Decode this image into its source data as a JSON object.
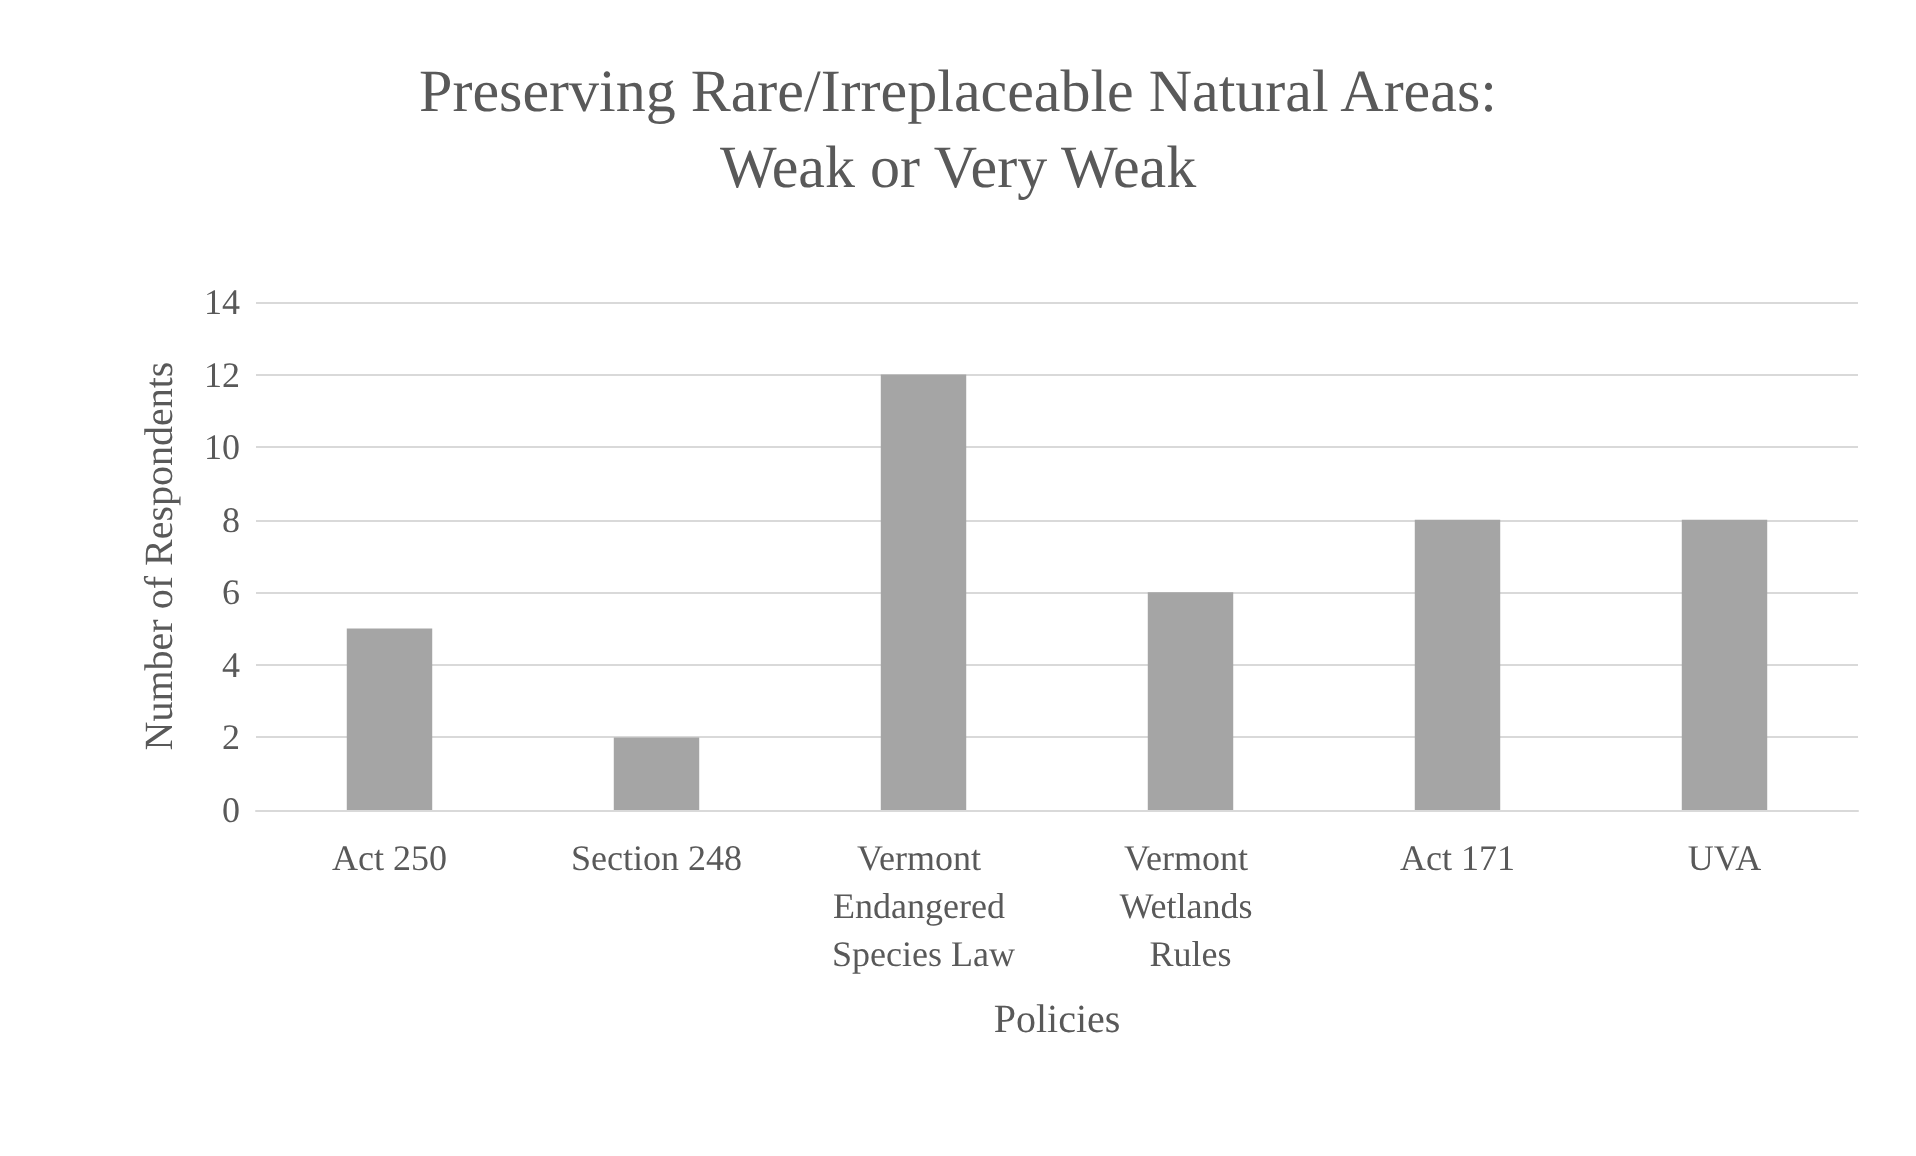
{
  "chart_data": {
    "type": "bar",
    "title": "Preserving Rare/Irreplaceable Natural Areas:\nWeak or Very Weak",
    "xlabel": "Policies",
    "ylabel": "Number of Respondents",
    "categories": [
      "Act 250",
      "Section 248",
      "Vermont Endangered Species Law",
      "Vermont Wetlands Rules",
      "Act 171",
      "UVA"
    ],
    "values": [
      5,
      2,
      12,
      6,
      8,
      8
    ],
    "color": "#a5a5a5",
    "ylim": [
      0,
      14
    ],
    "yticks": [
      0,
      2,
      4,
      6,
      8,
      10,
      12,
      14
    ],
    "grid": "y"
  }
}
